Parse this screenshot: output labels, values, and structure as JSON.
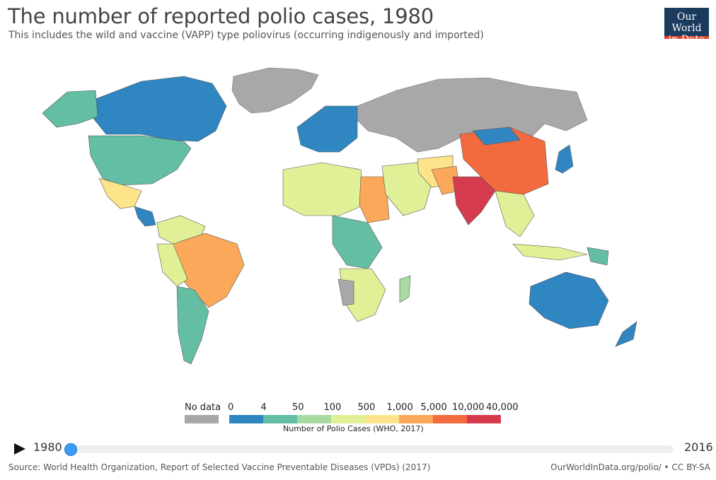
{
  "header": {
    "title": "The number of reported polio cases, 1980",
    "subtitle": "This includes the wild and vaccine (VAPP) type poliovirus (occurring indigenously and imported)",
    "logo_line1": "Our World",
    "logo_line2": "in Data"
  },
  "colors": {
    "no_data": "#a8a8a8",
    "bin_0_4": "#2f86c1",
    "bin_4_50": "#63bea4",
    "bin_50_100": "#a7dba1",
    "bin_100_500": "#e0f096",
    "bin_500_1000": "#fde389",
    "bin_1000_5000": "#fca85a",
    "bin_5000_10000": "#f26a3e",
    "bin_10000_40000": "#d53b4d"
  },
  "legend": {
    "no_data_label": "No data",
    "tick_labels": [
      "0",
      "4",
      "50",
      "100",
      "500",
      "1,000",
      "5,000",
      "10,000",
      "40,000"
    ],
    "caption": "Number of Polio Cases (WHO, 2017)"
  },
  "timeline": {
    "start_year": "1980",
    "end_year": "2016",
    "current_year": "1980"
  },
  "footer": {
    "source": "Source: World Health Organization, Report of Selected Vaccine Preventable Diseases (VPDs) (2017)",
    "link": "OurWorldInData.org/polio/ • CC BY-SA"
  },
  "chart_data": {
    "type": "choropleth",
    "title": "The number of reported polio cases, 1980",
    "legend_bins": [
      {
        "range": [
          0,
          4
        ],
        "color": "#2f86c1"
      },
      {
        "range": [
          4,
          50
        ],
        "color": "#63bea4"
      },
      {
        "range": [
          50,
          100
        ],
        "color": "#a7dba1"
      },
      {
        "range": [
          100,
          500
        ],
        "color": "#e0f096"
      },
      {
        "range": [
          500,
          1000
        ],
        "color": "#fde389"
      },
      {
        "range": [
          1000,
          5000
        ],
        "color": "#fca85a"
      },
      {
        "range": [
          5000,
          10000
        ],
        "color": "#f26a3e"
      },
      {
        "range": [
          10000,
          40000
        ],
        "color": "#d53b4d"
      }
    ]
  }
}
